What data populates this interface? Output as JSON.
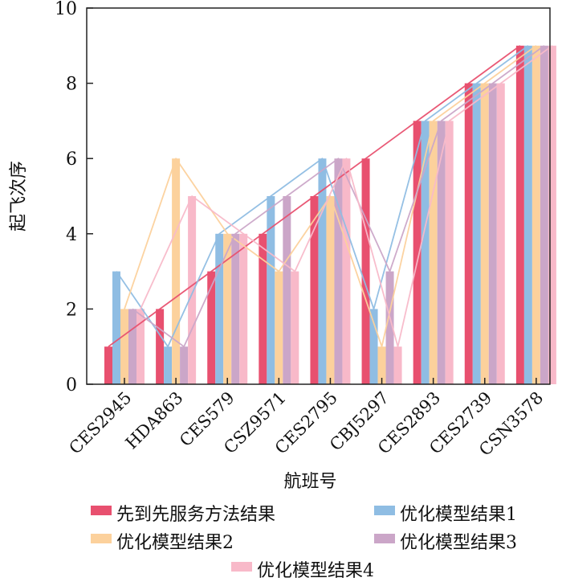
{
  "chart_data": {
    "type": "bar",
    "categories": [
      "CES2945",
      "HDA863",
      "CES579",
      "CSZ9571",
      "CES2795",
      "CBJ5297",
      "CES2893",
      "CES2739",
      "CSN3578"
    ],
    "xlabel": "航班号",
    "ylabel": "起飞次序",
    "ylim": [
      0,
      10
    ],
    "yticks": [
      0,
      2,
      4,
      6,
      8,
      10
    ],
    "grid": false,
    "legend_position": "bottom",
    "series": [
      {
        "name": "先到先服务方法结果",
        "color": "#e8506f",
        "values": [
          1,
          2,
          3,
          4,
          5,
          6,
          7,
          8,
          9
        ]
      },
      {
        "name": "优化模型结果1",
        "color": "#8fbde3",
        "values": [
          3,
          1,
          4,
          5,
          6,
          2,
          7,
          8,
          9
        ]
      },
      {
        "name": "优化模型结果2",
        "color": "#fcd19c",
        "values": [
          2,
          6,
          4,
          3,
          5,
          1,
          7,
          8,
          9
        ]
      },
      {
        "name": "优化模型结果3",
        "color": "#cba6c8",
        "values": [
          2,
          1,
          4,
          5,
          6,
          3,
          7,
          8,
          9
        ]
      },
      {
        "name": "优化模型结果4",
        "color": "#f8b9c9",
        "values": [
          2,
          5,
          4,
          3,
          6,
          1,
          7,
          8,
          9
        ]
      }
    ]
  }
}
